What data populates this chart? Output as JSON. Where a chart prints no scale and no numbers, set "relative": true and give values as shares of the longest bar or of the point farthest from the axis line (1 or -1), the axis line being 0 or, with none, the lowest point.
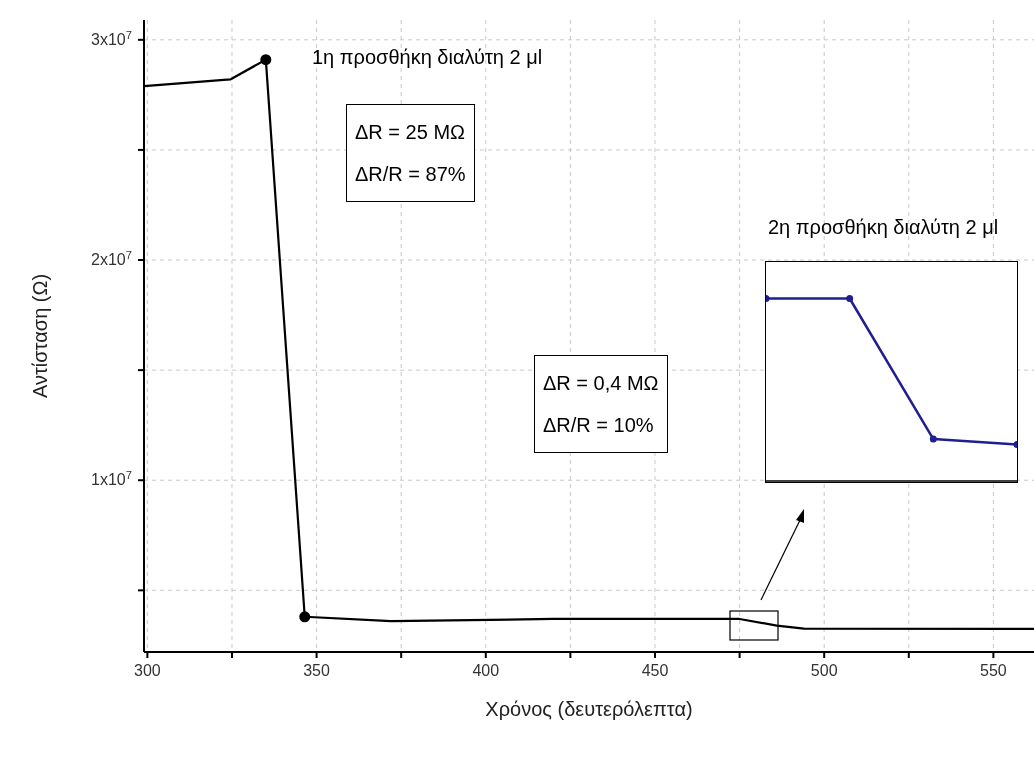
{
  "chart_data": [
    {
      "type": "line",
      "xlabel": "Χρόνος (δευτερόλεπτα)",
      "ylabel": "Αντίσταση (Ω)",
      "xlim": [
        299,
        562
      ],
      "ylim": [
        2200000,
        30900000
      ],
      "xticks": [
        300,
        {
          "value": 325,
          "label": null
        },
        350,
        {
          "value": 375,
          "label": null
        },
        400,
        {
          "value": 425,
          "label": null
        },
        450,
        {
          "value": 475,
          "label": null
        },
        500,
        {
          "value": 525,
          "label": null
        },
        550
      ],
      "yticks": [
        {
          "value": 5000000,
          "label": null
        },
        {
          "value": 10000000,
          "label": "1x10$^{7}$"
        },
        {
          "value": 15000000,
          "label": null
        },
        {
          "value": 20000000,
          "label": "2x10$^{7}$"
        },
        {
          "value": 25000000,
          "label": null
        },
        {
          "value": 30000000,
          "label": "3x10$^{7}$"
        }
      ],
      "grid": true,
      "marker": "none",
      "line_style": "solid",
      "series": [
        {
          "color": "#000000",
          "x": [
            299,
            324.5,
            335,
            346.5,
            372,
            420,
            475,
            486,
            494,
            562
          ],
          "values": [
            27900000,
            28200000,
            29100000,
            3800000,
            3600000,
            3700000,
            3700000,
            3400000,
            3260000,
            3250000
          ]
        },
        {
          "type": "scatter",
          "marker": "circle",
          "color": "#000000",
          "x": [
            335,
            346.5
          ],
          "values": [
            29100000,
            3800000
          ]
        }
      ],
      "annotations": [
        "1η προσθήκη διαλύτη 2 μl",
        "ΔR = 25 MΩ",
        "ΔR/R = 87%",
        "2η προσθήκη διαλύτη 2 μl",
        "ΔR = 0,4 MΩ",
        "ΔR/R = 10%"
      ]
    },
    {
      "type": "line",
      "relative": true,
      "marker": "circle",
      "categories": [
        null,
        null,
        null,
        null
      ],
      "series": [
        {
          "color": "#1f1f8f",
          "values": [
            1,
            1,
            0.23,
            0.2
          ]
        }
      ]
    }
  ]
}
